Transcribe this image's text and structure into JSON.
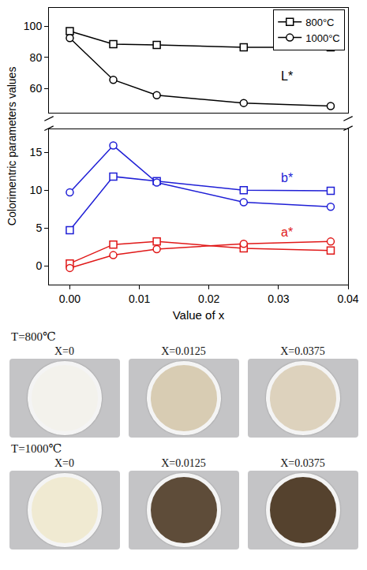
{
  "chart_data": {
    "type": "line",
    "xlabel": "Value of x",
    "ylabel": "Colorimentric parameters values",
    "x": [
      0,
      0.00625,
      0.0125,
      0.025,
      0.0375
    ],
    "xlim": [
      -0.003,
      0.04
    ],
    "xticks": [
      {
        "value": 0,
        "label": "0.00"
      },
      {
        "value": 0.01,
        "label": "0.01"
      },
      {
        "value": 0.02,
        "label": "0.02"
      },
      {
        "value": 0.03,
        "label": "0.03"
      },
      {
        "value": 0.04,
        "label": "0.04"
      }
    ],
    "ylim": [
      -2.5,
      18
    ],
    "yticks": [
      0,
      5,
      10,
      15
    ],
    "y2lim": [
      44,
      112
    ],
    "y2ticks": [
      60,
      80,
      100
    ],
    "grid": false,
    "legend": "upper right",
    "parameters": [
      {
        "name": "L*",
        "color": "#000000",
        "axis": "y2"
      },
      {
        "name": "b*",
        "color": "#1f1fd6"
      },
      {
        "name": "a*",
        "color": "#e01818"
      }
    ],
    "series": [
      {
        "name": "800°C",
        "marker": "square",
        "line_style": "solid",
        "values": {
          "L*": [
            97,
            88.5,
            88,
            86.5,
            86.5
          ],
          "b*": [
            4.7,
            11.8,
            11.2,
            10.0,
            9.9
          ],
          "a*": [
            0.3,
            2.8,
            3.2,
            2.3,
            2.0
          ]
        }
      },
      {
        "name": "1000°C",
        "marker": "circle",
        "line_style": "solid",
        "values": {
          "L*": [
            92.5,
            65.5,
            55.5,
            50.5,
            48.5
          ],
          "b*": [
            9.7,
            15.9,
            11.0,
            8.4,
            7.8
          ],
          "a*": [
            -0.3,
            1.4,
            2.2,
            2.9,
            3.2
          ]
        }
      }
    ]
  },
  "photos": [
    {
      "title": "T=800℃",
      "samples": [
        {
          "label": "X=0",
          "color": "#f3f2ec"
        },
        {
          "label": "X=0.0125",
          "color": "#d8ccb3"
        },
        {
          "label": "X=0.0375",
          "color": "#ddd2bd"
        }
      ]
    },
    {
      "title": "T=1000℃",
      "samples": [
        {
          "label": "X=0",
          "color": "#f0ead2"
        },
        {
          "label": "X=0.0125",
          "color": "#5e4c39"
        },
        {
          "label": "X=0.0375",
          "color": "#55422e"
        }
      ]
    }
  ]
}
